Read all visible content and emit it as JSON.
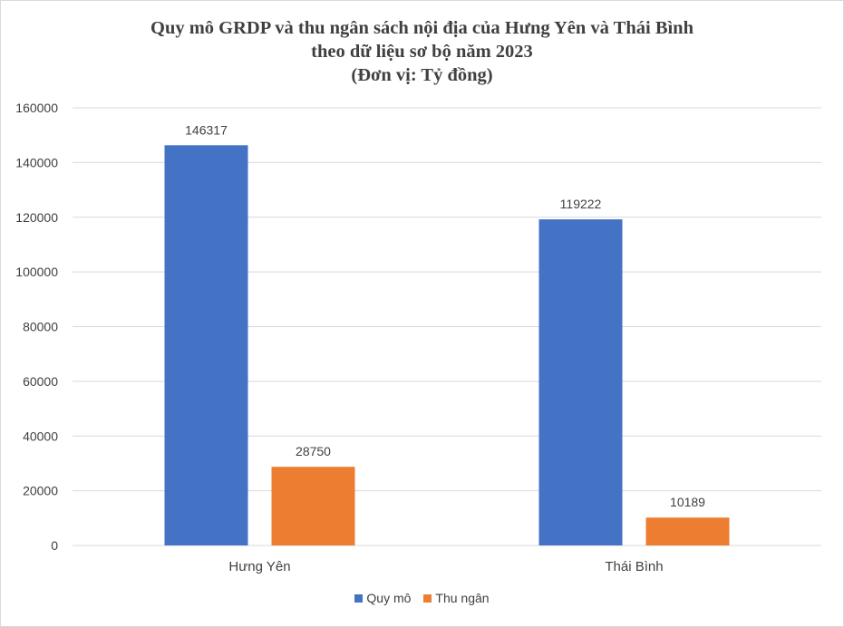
{
  "chart_data": {
    "type": "bar",
    "title_lines": [
      "Quy mô GRDP và thu ngân sách nội địa của Hưng Yên và Thái Bình",
      "theo dữ liệu sơ bộ năm 2023",
      "(Đơn vị: Tỷ đồng)"
    ],
    "categories": [
      "Hưng Yên",
      "Thái Bình"
    ],
    "series": [
      {
        "name": "Quy mô",
        "values": [
          146317,
          119222
        ],
        "color": "#4472c4"
      },
      {
        "name": "Thu ngân",
        "values": [
          28750,
          10189
        ],
        "color": "#ed7d31"
      }
    ],
    "ylim": [
      0,
      160000
    ],
    "yticks": [
      0,
      20000,
      40000,
      60000,
      80000,
      100000,
      120000,
      140000,
      160000
    ],
    "grid": true,
    "legend_position": "bottom",
    "gridline_color": "#d9d9d9"
  }
}
